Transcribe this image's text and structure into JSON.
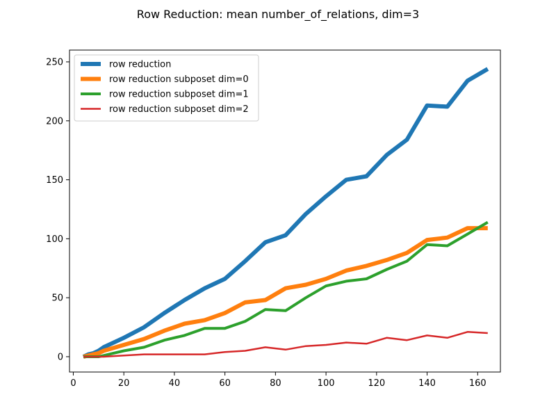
{
  "chart_data": {
    "type": "line",
    "title": "Row Reduction: mean number_of_relations, dim=3",
    "xlabel": "",
    "ylabel": "",
    "xlim": [
      -1.5,
      169
    ],
    "ylim": [
      -13,
      260
    ],
    "xticks": [
      0,
      20,
      40,
      60,
      80,
      100,
      120,
      140,
      160
    ],
    "yticks": [
      0,
      50,
      100,
      150,
      200,
      250
    ],
    "legend_position": "top-left",
    "grid": false,
    "series": [
      {
        "name": "row reduction",
        "color": "#1f77b4",
        "width": "thick",
        "x": [
          4,
          6,
          8,
          10,
          12,
          20,
          28,
          36,
          44,
          52,
          60,
          68,
          76,
          84,
          92,
          100,
          108,
          116,
          124,
          132,
          140,
          148,
          156,
          164
        ],
        "y": [
          0,
          2,
          3,
          5,
          8,
          16,
          25,
          37,
          48,
          58,
          66,
          81,
          97,
          103,
          121,
          136,
          150,
          153,
          171,
          184,
          213,
          212,
          234,
          244
        ]
      },
      {
        "name": "row reduction subposet dim=0",
        "color": "#ff7f0e",
        "width": "thick",
        "x": [
          4,
          6,
          8,
          10,
          12,
          20,
          28,
          36,
          44,
          52,
          60,
          68,
          76,
          84,
          92,
          100,
          108,
          116,
          124,
          132,
          140,
          148,
          156,
          164
        ],
        "y": [
          0,
          1,
          2,
          3,
          5,
          10,
          15,
          22,
          28,
          31,
          37,
          46,
          48,
          58,
          61,
          66,
          73,
          77,
          82,
          88,
          99,
          101,
          109,
          109
        ]
      },
      {
        "name": "row reduction subposet dim=1",
        "color": "#2ca02c",
        "width": "medium",
        "x": [
          4,
          6,
          8,
          10,
          12,
          20,
          28,
          36,
          44,
          52,
          60,
          68,
          76,
          84,
          92,
          100,
          108,
          116,
          124,
          132,
          140,
          148,
          156,
          164
        ],
        "y": [
          0,
          0,
          0,
          0,
          1,
          5,
          8,
          14,
          18,
          24,
          24,
          30,
          40,
          39,
          50,
          60,
          64,
          66,
          74,
          81,
          95,
          94,
          104,
          114
        ]
      },
      {
        "name": "row reduction subposet dim=2",
        "color": "#d62728",
        "width": "thin",
        "x": [
          4,
          6,
          8,
          10,
          12,
          20,
          28,
          36,
          44,
          52,
          60,
          68,
          76,
          84,
          92,
          100,
          108,
          116,
          124,
          132,
          140,
          148,
          156,
          164
        ],
        "y": [
          0,
          0,
          0,
          0,
          0,
          1,
          2,
          2,
          2,
          2,
          4,
          5,
          8,
          6,
          9,
          10,
          12,
          11,
          16,
          14,
          18,
          16,
          21,
          20
        ]
      }
    ]
  }
}
